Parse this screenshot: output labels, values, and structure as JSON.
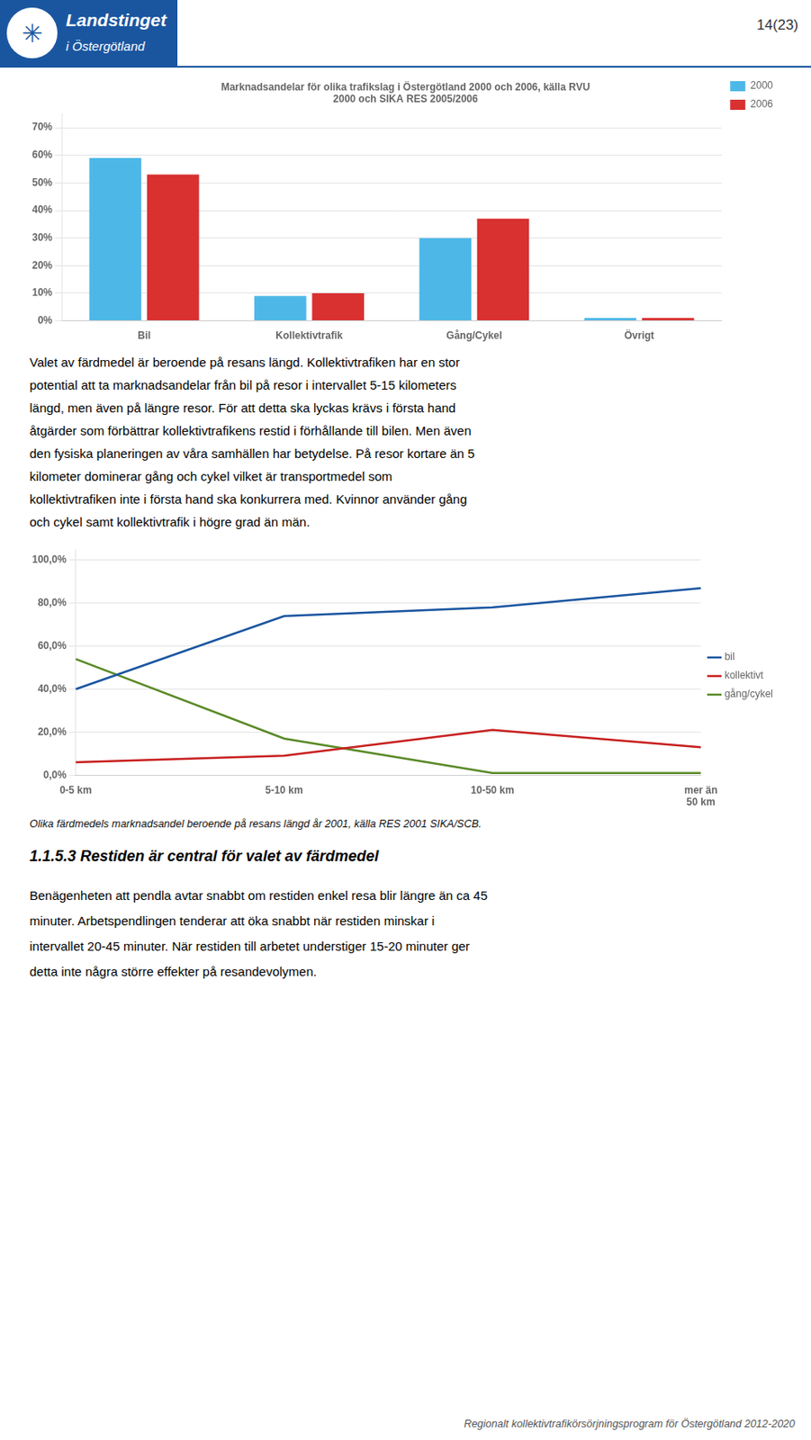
{
  "page_number": "14(23)",
  "logo_symbol": "✳",
  "logo_texts": [
    "Landstinget",
    "i Östergötland"
  ],
  "paragraph_1": [
    "Valet av färdmedel är beroende på resans längd. Kollektivtrafiken har en stor",
    "potential att ta marknadsandelar från bil på resor i intervallet 5-15 kilometers",
    "längd, men även på längre resor. För att detta ska lyckas krävs i första hand",
    "åtgärder som förbättrar kollektivtrafikens restid i förhållande till bilen. Men även",
    "den fysiska planeringen av våra samhällen har betydelse. På resor kortare än 5",
    "kilometer dominerar gång och cykel vilket är transportmedel som",
    "kollektivtrafiken inte i första hand ska konkurrera med. Kvinnor använder gång",
    "och cykel samt kollektivtrafik i högre grad än män."
  ],
  "caption": "Olika färdmedels marknadsandel beroende på resans längd år 2001, källa RES 2001 SIKA/SCB.",
  "section_title": "1.1.5.3  Restiden är central för valet av färdmedel",
  "paragraph_2": [
    "Benägenheten att pendla avtar snabbt om restiden enkel resa blir längre än ca 45",
    "minuter. Arbetspendlingen tenderar att öka snabbt när restiden minskar i",
    "intervallet 20-45 minuter. När restiden till arbetet understiger 15-20 minuter ger",
    "detta inte några större effekter på resandevolymen."
  ],
  "footer": "Regionalt kollektivtrafikörsörjningsprogram för Östergötland 2012-2020",
  "chart_data": [
    {
      "type": "bar",
      "title": [
        "Marknadsandelar för olika trafikslag i Östergötland 2000 och 2006, källa RVU",
        "2000 och SIKA RES 2005/2006"
      ],
      "categories": [
        "Bil",
        "Kollektivtrafik",
        "Gång/Cykel",
        "Övrigt"
      ],
      "series": [
        {
          "name": "2000",
          "color": "#4DB8E8",
          "values": [
            0.59,
            0.09,
            0.3,
            0.01
          ]
        },
        {
          "name": "2006",
          "color": "#D93030",
          "values": [
            0.53,
            0.1,
            0.37,
            0.01
          ]
        }
      ],
      "ylim": [
        0,
        0.75
      ],
      "yticks": [
        {
          "value": 0.0,
          "label": "0%"
        },
        {
          "value": 0.1,
          "label": "10%"
        },
        {
          "value": 0.2,
          "label": "20%"
        },
        {
          "value": 0.3,
          "label": "30%"
        },
        {
          "value": 0.4,
          "label": "40%"
        },
        {
          "value": 0.5,
          "label": "50%"
        },
        {
          "value": 0.6,
          "label": "60%"
        },
        {
          "value": 0.7,
          "label": "70%"
        }
      ],
      "grid": true,
      "legend": "upper right"
    },
    {
      "type": "line",
      "categories": [
        "0-5 km",
        "5-10 km",
        "10-50 km",
        "mer än\n50 km"
      ],
      "series": [
        {
          "name": "bil",
          "color": "#1A56A0",
          "values": [
            0.4,
            0.74,
            0.78,
            0.87
          ]
        },
        {
          "name": "kollektivt",
          "color": "#C82020",
          "values": [
            0.06,
            0.09,
            0.21,
            0.13
          ]
        },
        {
          "name": "gång/cykel",
          "color": "#5A8A28",
          "values": [
            0.54,
            0.17,
            0.01,
            0.01
          ]
        }
      ],
      "ylim": [
        0.0,
        1.05
      ],
      "yticks": [
        {
          "value": 0.0,
          "label": "0,0%"
        },
        {
          "value": 0.2,
          "label": "20,0%"
        },
        {
          "value": 0.4,
          "label": "40,0%"
        },
        {
          "value": 0.6,
          "label": "60,0%"
        },
        {
          "value": 0.8,
          "label": "80,0%"
        },
        {
          "value": 1.0,
          "label": "100,0%"
        }
      ],
      "grid": true,
      "legend": "right"
    }
  ]
}
